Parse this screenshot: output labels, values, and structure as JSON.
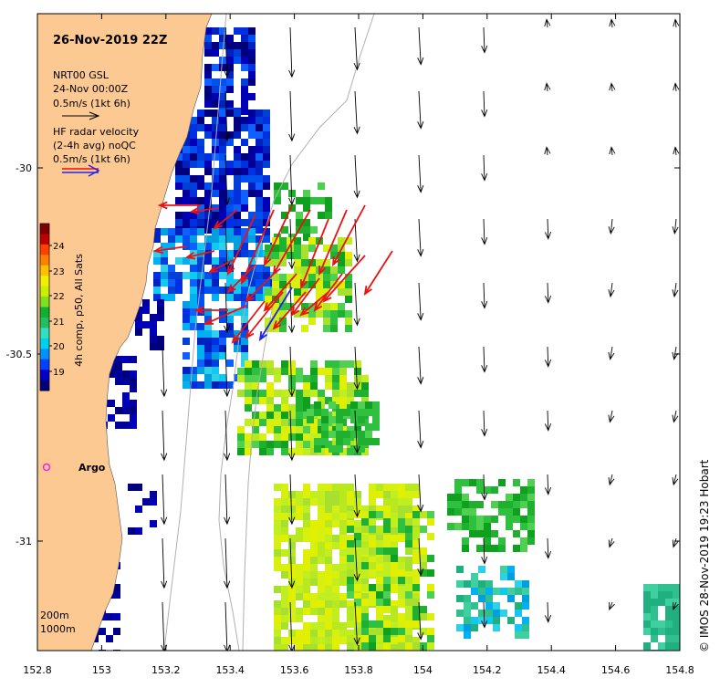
{
  "title": "26-Nov-2019 22Z",
  "legend": {
    "model_line1": "NRT00 GSL",
    "model_line2": "24-Nov 00:00Z",
    "model_scale": "0.5m/s (1kt 6h)",
    "radar_line1": "HF radar velocity",
    "radar_line2": "(2-4h avg) noQC",
    "radar_scale": "0.5m/s (1kt 6h)"
  },
  "colorbar": {
    "label": "4h comp, p50, All Sats",
    "ticks": [
      "24",
      "23",
      "22",
      "21",
      "20",
      "19"
    ],
    "colors": [
      "#00007f",
      "#0000c8",
      "#0040ff",
      "#0090ff",
      "#00d0f0",
      "#30e0c0",
      "#20c060",
      "#10b030",
      "#80e020",
      "#c8f000",
      "#f0f000",
      "#ffc000",
      "#ff8000",
      "#ff4000",
      "#c00000",
      "#7f0000"
    ]
  },
  "axes": {
    "x_ticks": [
      "152.8",
      "153",
      "153.2",
      "153.4",
      "153.6",
      "153.8",
      "154",
      "154.2",
      "154.4",
      "154.6",
      "154.8"
    ],
    "y_ticks": [
      "-30",
      "-30.5",
      "-31"
    ]
  },
  "isobaths": [
    "200m",
    "1000m"
  ],
  "argo_label": "Argo",
  "credit": "© IMOS 28-Nov-2019 19:23 Hobart",
  "colors": {
    "land": "#fdc993",
    "radar_arrow": "#ee1111",
    "model_arrow": "#000000",
    "argo": "#ee22ee"
  }
}
